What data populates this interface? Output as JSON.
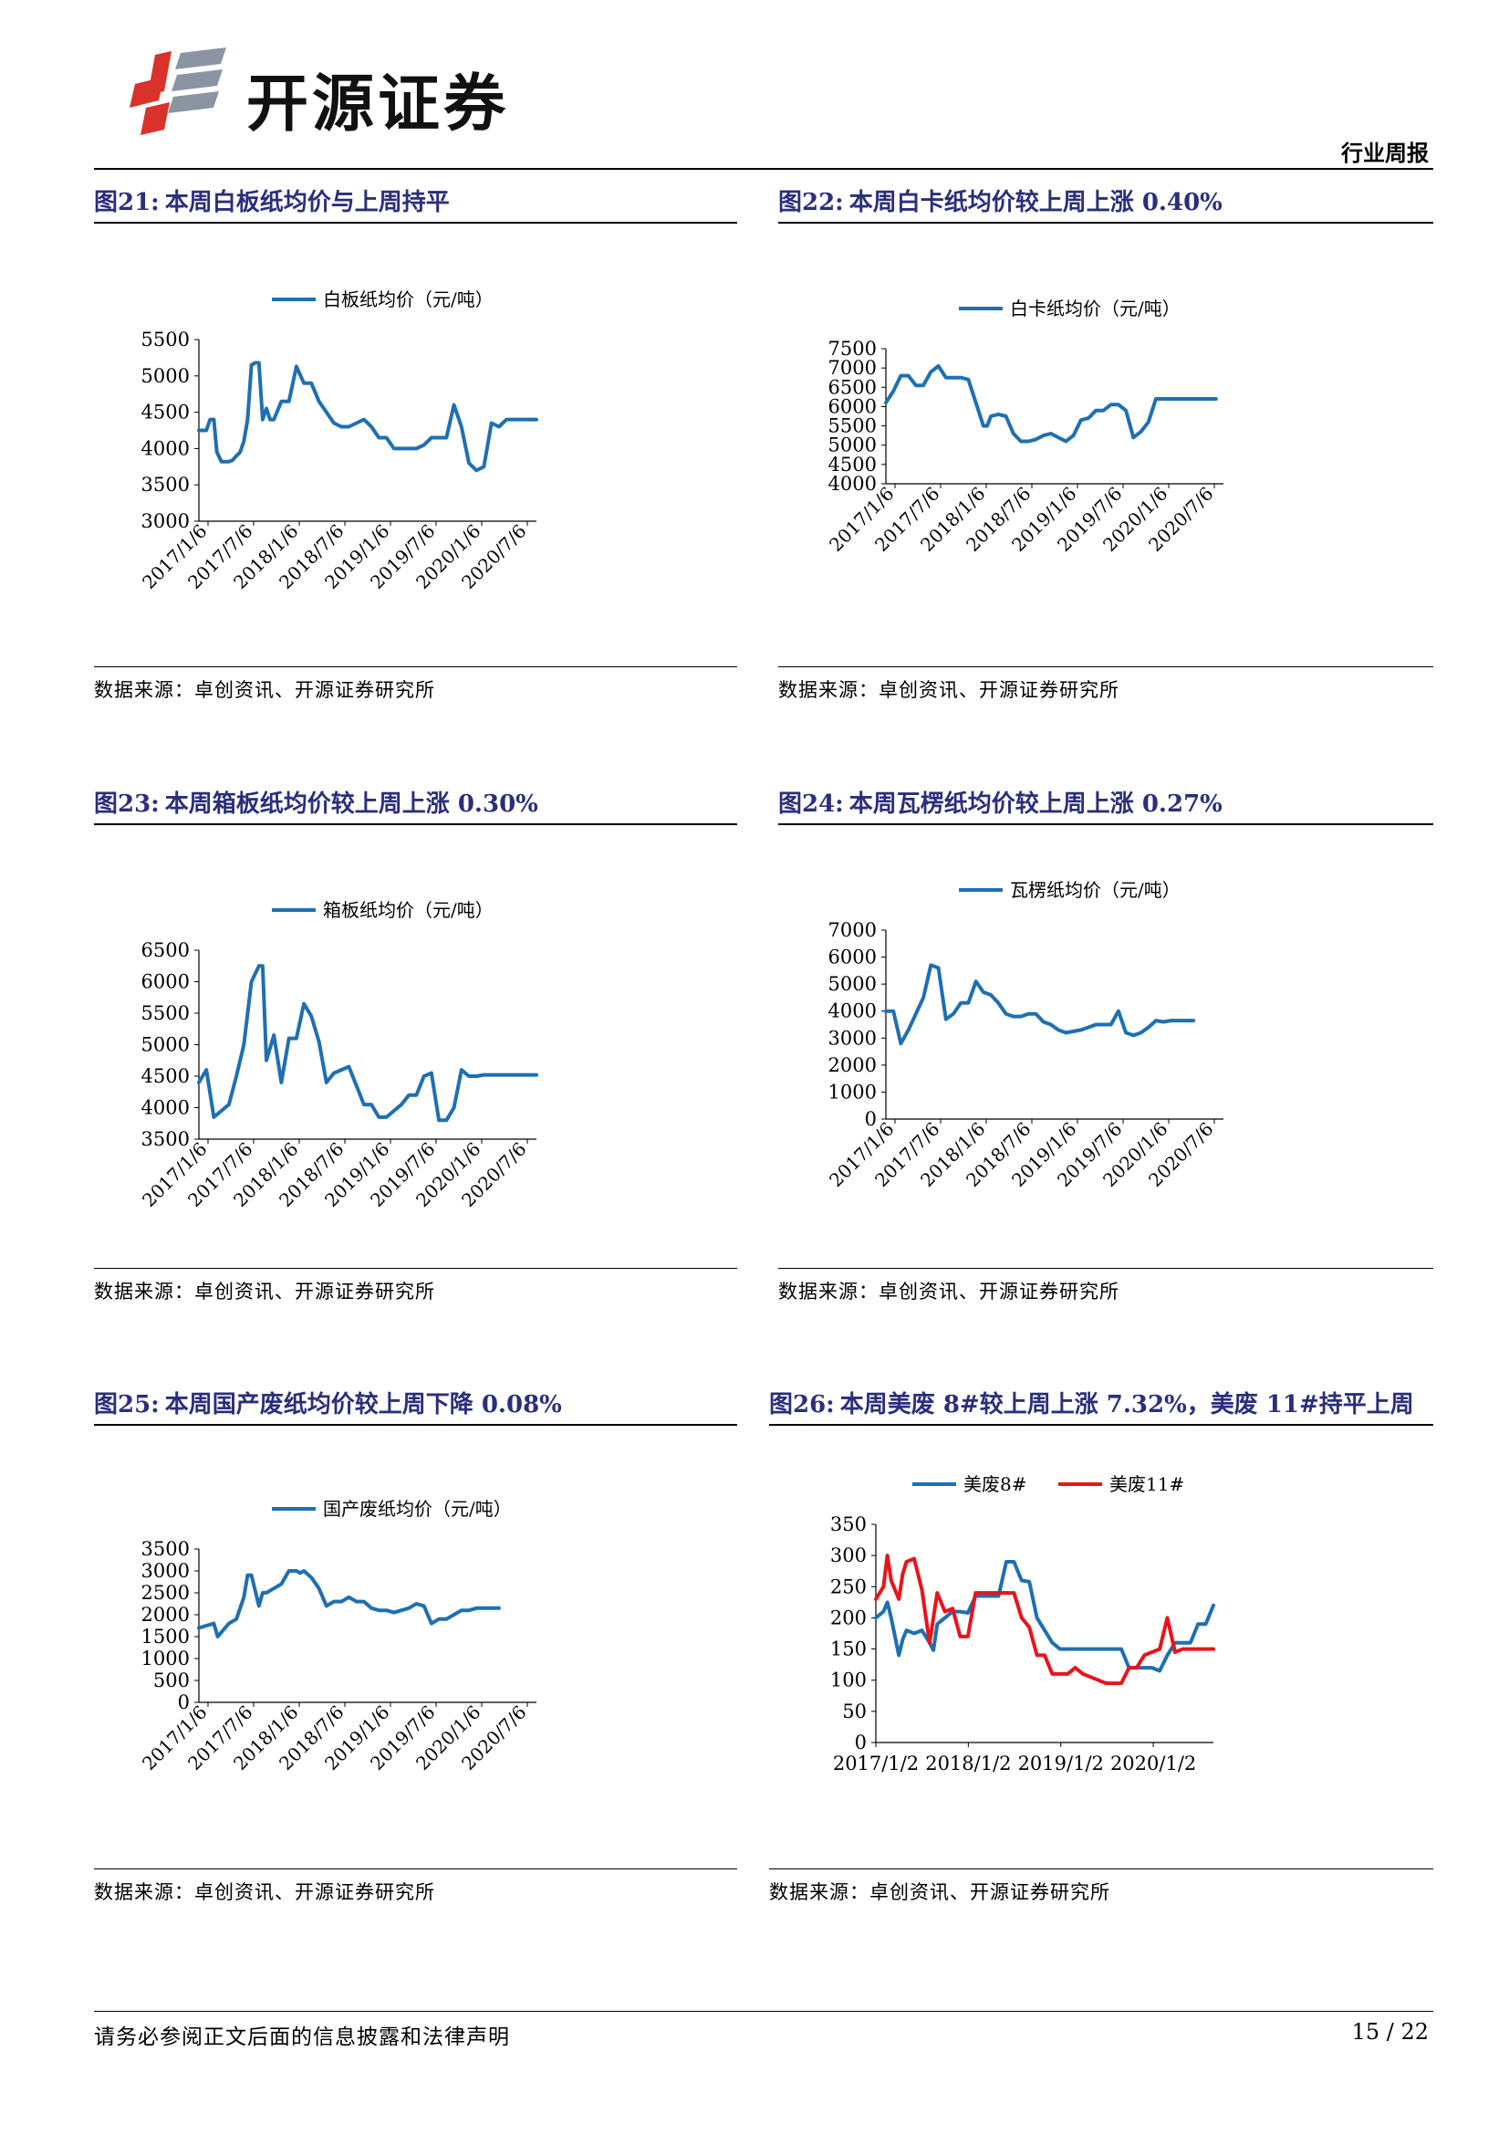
{
  "header": {
    "brand": "开源证券",
    "section": "行业周报"
  },
  "footer": {
    "disclaimer": "请务必参阅正文后面的信息披露和法律声明",
    "page": "15 / 22"
  },
  "colors": {
    "blue": "#1f6fb2",
    "red": "#e8141b",
    "title": "#2b2f7a"
  },
  "charts": [
    {
      "id": "fig21",
      "title": {
        "num": "图21:",
        "text": "本周白板纸均价与上周持平"
      },
      "source": "数据来源：卓创资讯、开源证券研究所",
      "chart_data": {
        "type": "line",
        "x_ticks": [
          "2017/1/6",
          "2017/7/6",
          "2018/1/6",
          "2018/7/6",
          "2019/1/6",
          "2019/7/6",
          "2020/1/6",
          "2020/7/6"
        ],
        "ylim": [
          3000,
          5500
        ],
        "y_ticks": [
          3000,
          3500,
          4000,
          4500,
          5000,
          5500
        ],
        "x_range": [
          0,
          45
        ],
        "legend_position": "top",
        "series": [
          {
            "name": "白板纸均价（元/吨）",
            "color": "#1f6fb2",
            "x": [
              0,
              1,
              1.5,
              2,
              2.4,
              3,
              4,
              4.5,
              5,
              5.5,
              6,
              6.5,
              7,
              7.5,
              8,
              8.5,
              9,
              9.5,
              10,
              11,
              11.5,
              12,
              13,
              14,
              15,
              16,
              17,
              18,
              19,
              20,
              21,
              22,
              23,
              24,
              25,
              26,
              27,
              28,
              29,
              30,
              31,
              32,
              33,
              34,
              35,
              36,
              37,
              38,
              39,
              40,
              41,
              42,
              43,
              44,
              45
            ],
            "y": [
              4250,
              4250,
              4400,
              4400,
              3950,
              3820,
              3820,
              3840,
              3900,
              3950,
              4100,
              4400,
              5150,
              5180,
              5180,
              4400,
              4550,
              4400,
              4400,
              4650,
              4650,
              4650,
              5130,
              4900,
              4900,
              4650,
              4500,
              4350,
              4300,
              4300,
              4350,
              4400,
              4300,
              4150,
              4150,
              4000,
              4000,
              4000,
              4000,
              4050,
              4150,
              4150,
              4150,
              4600,
              4300,
              3800,
              3700,
              3750,
              4350,
              4300,
              4400,
              4400,
              4400,
              4400,
              4400
            ]
          }
        ]
      }
    },
    {
      "id": "fig22",
      "title": {
        "num": "图22:",
        "text": "本周白卡纸均价较上周上涨 0.40%"
      },
      "source": "数据来源：卓创资讯、开源证券研究所",
      "chart_data": {
        "type": "line",
        "x_ticks": [
          "2017/1/6",
          "2017/7/6",
          "2018/1/6",
          "2018/7/6",
          "2019/1/6",
          "2019/7/6",
          "2020/1/6",
          "2020/7/6"
        ],
        "ylim": [
          4000,
          7500
        ],
        "y_ticks": [
          4000,
          4500,
          5000,
          5500,
          6000,
          6500,
          7000,
          7500
        ],
        "x_range": [
          0,
          45
        ],
        "legend_position": "top",
        "series": [
          {
            "name": "白卡纸均价（元/吨）",
            "color": "#1f6fb2",
            "x": [
              0,
              1,
              2,
              3,
              4,
              5,
              6,
              7,
              8,
              9,
              10,
              11,
              12,
              13,
              13.5,
              14,
              15,
              16,
              17,
              18,
              19,
              20,
              21,
              22,
              23,
              24,
              25,
              26,
              27,
              28,
              29,
              30,
              31,
              32,
              33,
              34,
              35,
              36,
              37,
              38,
              39,
              40,
              41,
              42,
              43,
              44
            ],
            "y": [
              6100,
              6400,
              6800,
              6800,
              6550,
              6550,
              6900,
              7050,
              6750,
              6750,
              6750,
              6700,
              6100,
              5500,
              5500,
              5750,
              5800,
              5750,
              5300,
              5100,
              5100,
              5150,
              5250,
              5300,
              5200,
              5100,
              5250,
              5650,
              5700,
              5900,
              5900,
              6050,
              6050,
              5900,
              5200,
              5350,
              5600,
              6200,
              6200,
              6200,
              6200,
              6200,
              6200,
              6200,
              6200,
              6200
            ]
          }
        ]
      }
    },
    {
      "id": "fig23",
      "title": {
        "num": "图23:",
        "text": "本周箱板纸均价较上周上涨 0.30%"
      },
      "source": "数据来源：卓创资讯、开源证券研究所",
      "chart_data": {
        "type": "line",
        "x_ticks": [
          "2017/1/6",
          "2017/7/6",
          "2018/1/6",
          "2018/7/6",
          "2019/1/6",
          "2019/7/6",
          "2020/1/6",
          "2020/7/6"
        ],
        "ylim": [
          3500,
          6500
        ],
        "y_ticks": [
          3500,
          4000,
          4500,
          5000,
          5500,
          6000,
          6500
        ],
        "x_range": [
          0,
          45
        ],
        "legend_position": "top",
        "series": [
          {
            "name": "箱板纸均价（元/吨）",
            "color": "#1f6fb2",
            "x": [
              0,
              1,
              2,
              3,
              4,
              5,
              6,
              7,
              8,
              8.5,
              9,
              10,
              11,
              12,
              13,
              14,
              15,
              16,
              17,
              18,
              19,
              20,
              21,
              22,
              23,
              24,
              25,
              26,
              27,
              28,
              29,
              30,
              31,
              32,
              33,
              34,
              35,
              36,
              37,
              38,
              38.5,
              39,
              40,
              41,
              42,
              43,
              44,
              45
            ],
            "y": [
              4400,
              4600,
              3850,
              3950,
              4050,
              4500,
              5000,
              6000,
              6250,
              6250,
              4750,
              5150,
              4400,
              5100,
              5100,
              5650,
              5450,
              5050,
              4400,
              4550,
              4600,
              4650,
              4350,
              4050,
              4050,
              3850,
              3850,
              3950,
              4050,
              4200,
              4200,
              4500,
              4550,
              3800,
              3800,
              4000,
              4600,
              4500,
              4500,
              4520,
              4520,
              4520,
              4520,
              4520,
              4520,
              4520,
              4520,
              4520
            ]
          }
        ]
      }
    },
    {
      "id": "fig24",
      "title": {
        "num": "图24:",
        "text": "本周瓦楞纸均价较上周上涨 0.27%"
      },
      "source": "数据来源：卓创资讯、开源证券研究所",
      "chart_data": {
        "type": "line",
        "x_ticks": [
          "2017/1/6",
          "2017/7/6",
          "2018/1/6",
          "2018/7/6",
          "2019/1/6",
          "2019/7/6",
          "2020/1/6",
          "2020/7/6"
        ],
        "ylim": [
          0,
          7000
        ],
        "y_ticks": [
          0,
          1000,
          2000,
          3000,
          4000,
          5000,
          6000,
          7000
        ],
        "x_range": [
          0,
          45
        ],
        "legend_position": "top",
        "series": [
          {
            "name": "瓦楞纸均价（元/吨）",
            "color": "#1f6fb2",
            "x": [
              0,
              1,
              2,
              3,
              4,
              5,
              6,
              7,
              8,
              9,
              10,
              11,
              12,
              13,
              14,
              15,
              16,
              17,
              18,
              19,
              20,
              21,
              22,
              23,
              24,
              25,
              26,
              27,
              28,
              29,
              30,
              31,
              32,
              33,
              34,
              35,
              36,
              37,
              38,
              39,
              40,
              41
            ],
            "y": [
              4000,
              4000,
              2800,
              3300,
              3900,
              4500,
              5700,
              5600,
              3700,
              3900,
              4300,
              4300,
              5100,
              4700,
              4600,
              4300,
              3900,
              3800,
              3800,
              3900,
              3900,
              3600,
              3500,
              3300,
              3200,
              3250,
              3300,
              3400,
              3500,
              3500,
              3500,
              4000,
              3200,
              3100,
              3200,
              3400,
              3650,
              3600,
              3650,
              3650,
              3650,
              3650
            ]
          }
        ]
      }
    },
    {
      "id": "fig25",
      "title": {
        "num": "图25:",
        "text": "本周国产废纸均价较上周下降 0.08%"
      },
      "source": "数据来源：卓创资讯、开源证券研究所",
      "chart_data": {
        "type": "line",
        "x_ticks": [
          "2017/1/6",
          "2017/7/6",
          "2018/1/6",
          "2018/7/6",
          "2019/1/6",
          "2019/7/6",
          "2020/1/6",
          "2020/7/6"
        ],
        "ylim": [
          0,
          3500
        ],
        "y_ticks": [
          0,
          500,
          1000,
          1500,
          2000,
          2500,
          3000,
          3500
        ],
        "x_range": [
          0,
          45
        ],
        "legend_position": "top",
        "series": [
          {
            "name": "国产废纸均价（元/吨）",
            "color": "#1f6fb2",
            "x": [
              0,
              1,
              2,
              2.5,
              3,
              4,
              5,
              6,
              6.5,
              7,
              8,
              8.5,
              9,
              10,
              11,
              12,
              13,
              13.5,
              14,
              15,
              16,
              17,
              18,
              19,
              20,
              21,
              22,
              23,
              24,
              25,
              26,
              27,
              28,
              29,
              30,
              31,
              32,
              33,
              34,
              35,
              36,
              37,
              38,
              39,
              40
            ],
            "y": [
              1700,
              1750,
              1800,
              1500,
              1600,
              1800,
              1900,
              2400,
              2900,
              2900,
              2200,
              2500,
              2500,
              2600,
              2700,
              3000,
              3000,
              2950,
              3000,
              2850,
              2600,
              2200,
              2300,
              2300,
              2400,
              2300,
              2300,
              2150,
              2100,
              2100,
              2050,
              2100,
              2150,
              2250,
              2200,
              1800,
              1900,
              1900,
              2000,
              2100,
              2100,
              2150,
              2150,
              2150,
              2150
            ]
          }
        ]
      }
    },
    {
      "id": "fig26",
      "title": {
        "num": "图26:",
        "text": "本周美废 8#较上周上涨 7.32%，美废 11#持平上周"
      },
      "source": "数据来源：卓创资讯、开源证券研究所",
      "chart_data": {
        "type": "line",
        "x_ticks": [
          "2017/1/2",
          "2018/1/2",
          "2019/1/2",
          "2020/1/2"
        ],
        "ylim": [
          0,
          350
        ],
        "y_ticks": [
          0,
          50,
          100,
          150,
          200,
          250,
          300,
          350
        ],
        "x_range": [
          0,
          44
        ],
        "legend_position": "top",
        "series": [
          {
            "name": "美废8#",
            "color": "#1f6fb2",
            "x": [
              0,
              1,
              1.5,
              2,
              3,
              3.5,
              4,
              5,
              6,
              7,
              7.5,
              8,
              9,
              10,
              11,
              12,
              13,
              14,
              15,
              16,
              17,
              18,
              19,
              20,
              21,
              22,
              23,
              24,
              25,
              26,
              27,
              28,
              29,
              30,
              31,
              32,
              33,
              34,
              35,
              36,
              37,
              38,
              39,
              40,
              41,
              42,
              43,
              44
            ],
            "y": [
              200,
              210,
              225,
              200,
              140,
              165,
              180,
              175,
              180,
              160,
              148,
              190,
              200,
              210,
              210,
              208,
              235,
              235,
              235,
              235,
              290,
              290,
              260,
              258,
              200,
              180,
              160,
              150,
              150,
              150,
              150,
              150,
              150,
              150,
              150,
              150,
              120,
              120,
              120,
              120,
              115,
              140,
              160,
              160,
              160,
              190,
              190,
              220
            ]
          },
          {
            "name": "美废11#",
            "color": "#e8141b",
            "x": [
              0,
              1,
              1.5,
              2,
              3,
              3.5,
              4,
              5,
              6,
              7,
              8,
              9,
              10,
              11,
              12,
              13,
              14,
              15,
              16,
              17,
              18,
              19,
              20,
              21,
              22,
              23,
              24,
              25,
              26,
              27,
              28,
              29,
              30,
              31,
              32,
              33,
              34,
              35,
              36,
              37,
              38,
              39,
              40,
              41,
              42,
              43,
              44
            ],
            "y": [
              230,
              250,
              300,
              260,
              230,
              270,
              290,
              295,
              245,
              160,
              240,
              210,
              215,
              170,
              170,
              240,
              240,
              240,
              240,
              240,
              240,
              200,
              185,
              140,
              140,
              110,
              110,
              110,
              120,
              110,
              105,
              100,
              95,
              95,
              95,
              120,
              120,
              140,
              145,
              150,
              200,
              145,
              150,
              150,
              150,
              150,
              150
            ]
          }
        ]
      }
    }
  ]
}
